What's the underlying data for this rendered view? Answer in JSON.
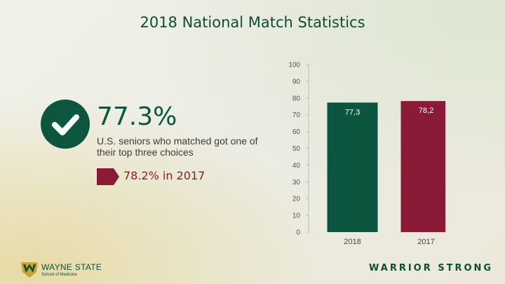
{
  "slide": {
    "title": "2018 National Match Statistics"
  },
  "stat": {
    "icon": "checkmark-icon",
    "percent": "77.3%",
    "description": "U.S. seniors who matched got one of their top three choices",
    "previous_icon": "tag-arrow-icon",
    "previous": "78.2% in 2017"
  },
  "branding": {
    "logo_icon": "wayne-state-w-shield-icon",
    "logo_name": "WAYNE STATE",
    "logo_sub": "School of Medicine",
    "tagline": "WARRIOR STRONG"
  },
  "colors": {
    "green": "#0c5640",
    "maroon": "#8b1a37"
  },
  "chart_data": {
    "type": "bar",
    "categories": [
      "2018",
      "2017"
    ],
    "values": [
      77.3,
      78.2
    ],
    "data_labels": [
      "77,3",
      "78,2"
    ],
    "bar_colors": [
      "#0c5640",
      "#8b1a37"
    ],
    "ylim": [
      0,
      100
    ],
    "yticks": [
      0,
      10,
      20,
      30,
      40,
      50,
      60,
      70,
      80,
      90,
      100
    ],
    "grid": false,
    "title": "",
    "xlabel": "",
    "ylabel": ""
  }
}
